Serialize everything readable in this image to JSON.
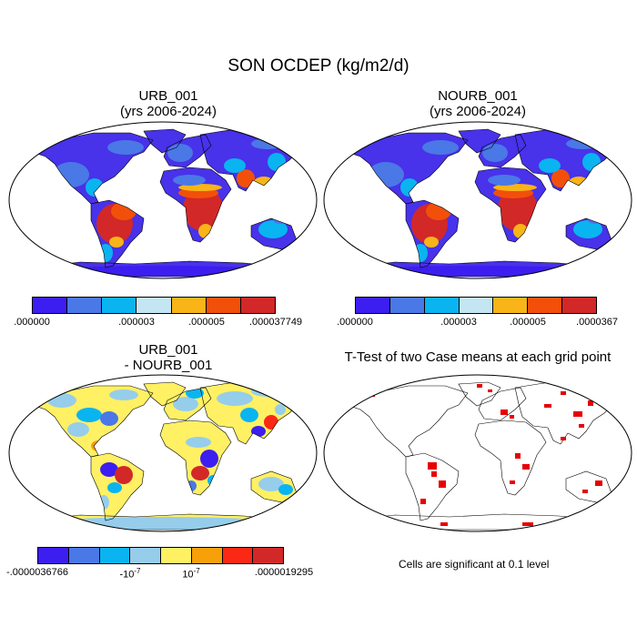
{
  "figure_title": "SON OCDEP (kg/m2/d)",
  "colors": {
    "seq": [
      "#3c1ef0",
      "#4a78e6",
      "#0ab4f0",
      "#c4e6f2",
      "#f8b418",
      "#f2500a",
      "#d22828"
    ],
    "div": [
      "#3c1ef0",
      "#4a78e6",
      "#0ab4f0",
      "#96cdeb",
      "#fff064",
      "#f8a00a",
      "#fa2814",
      "#d22828"
    ],
    "land_base": "#4832ea",
    "signif": "#e60000",
    "diff_land": "#96cdeb"
  },
  "panels": [
    {
      "id": "urb",
      "title_line1": "URB_001",
      "title_line2": "(yrs 2006-2024)",
      "legend_labels": [
        ".000000",
        ".000003",
        ".000005",
        ".000037749"
      ]
    },
    {
      "id": "nourb",
      "title_line1": "NOURB_001",
      "title_line2": "(yrs 2006-2024)",
      "legend_labels": [
        ".000000",
        ".000003",
        ".000005",
        ".0000367"
      ]
    },
    {
      "id": "diff",
      "title_line1": "URB_001",
      "title_line2": "- NOURB_001",
      "legend_labels": [
        "-.0000036766",
        "-10",
        "-7",
        "10",
        "-7",
        ".0000019295"
      ]
    },
    {
      "id": "ttest",
      "title_line1": "T-Test of two Case means at each grid point",
      "note": "Cells are significant at 0.1 level"
    }
  ]
}
